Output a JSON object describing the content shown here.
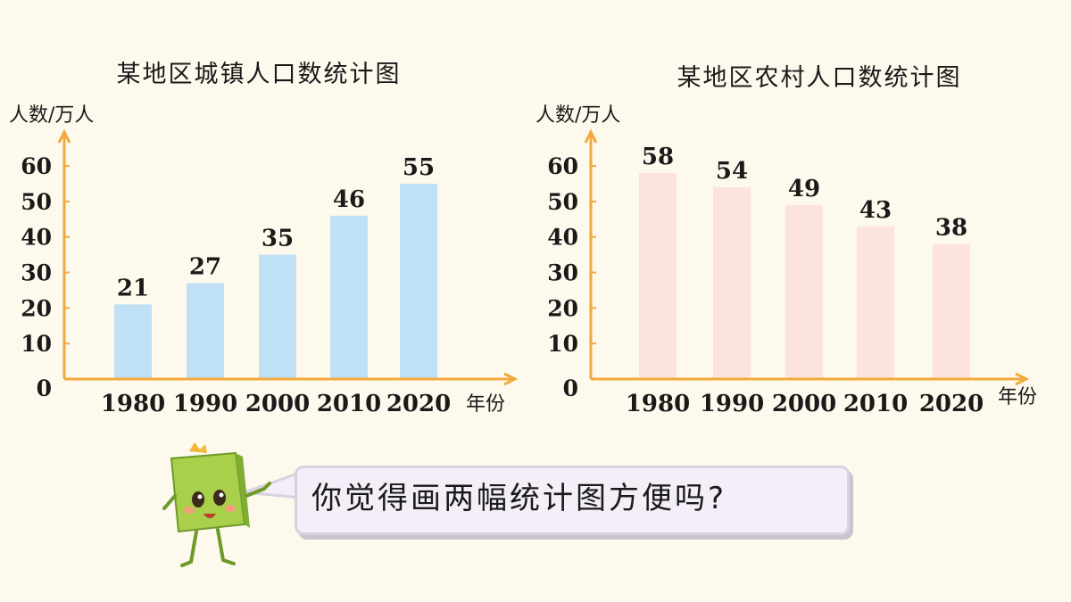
{
  "chart_data": [
    {
      "type": "bar",
      "title": "某地区城镇人口数统计图",
      "ylabel": "人数/万人",
      "xlabel": "年份",
      "categories": [
        "1980",
        "1990",
        "2000",
        "2010",
        "2020"
      ],
      "values": [
        21,
        27,
        35,
        46,
        55
      ],
      "ylim": [
        0,
        60
      ],
      "yticks": [
        0,
        10,
        20,
        30,
        40,
        50,
        60
      ],
      "grid": false,
      "bar_color": "#bfe0f5"
    },
    {
      "type": "bar",
      "title": "某地区农村人口数统计图",
      "ylabel": "人数/万人",
      "xlabel": "年份",
      "categories": [
        "1980",
        "1990",
        "2000",
        "2010",
        "2020"
      ],
      "values": [
        58,
        54,
        49,
        43,
        38
      ],
      "ylim": [
        0,
        60
      ],
      "yticks": [
        0,
        10,
        20,
        30,
        40,
        50,
        60
      ],
      "grid": false,
      "bar_color": "#fde3e0"
    }
  ],
  "speech": {
    "text": "你觉得画两幅统计图方便吗?"
  },
  "colors": {
    "axis": "#f2a93b",
    "background": "#fdf9ec"
  }
}
